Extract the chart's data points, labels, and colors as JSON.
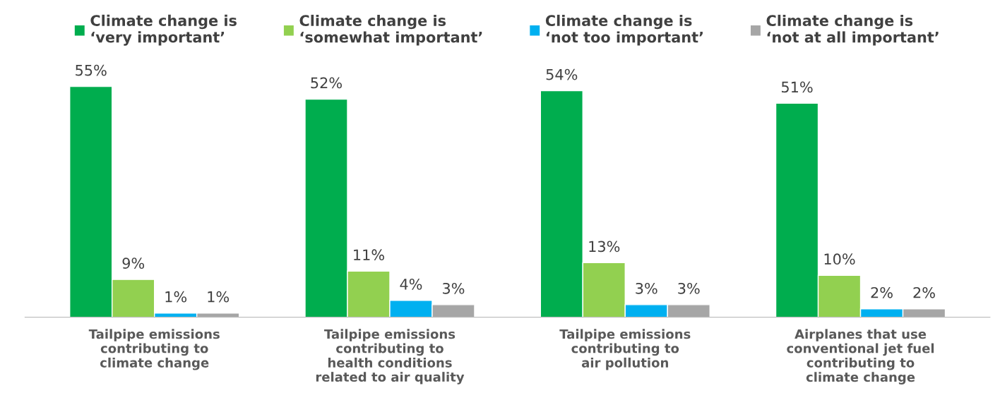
{
  "chart_data": {
    "type": "bar",
    "categories": [
      "Tailpipe emissions\ncontributing to\nclimate change",
      "Tailpipe emissions\ncontributing to\nhealth conditions\nrelated to air quality",
      "Tailpipe emissions\ncontributing to\nair pollution",
      "Airplanes that use\nconventional jet fuel\ncontributing to\nclimate change"
    ],
    "series": [
      {
        "name": "Climate change is\n‘very important’",
        "color": "#00ad4e",
        "values": [
          55,
          52,
          54,
          51
        ],
        "value_labels": [
          "55%",
          "52%",
          "54%",
          "51%"
        ]
      },
      {
        "name": "Climate change is\n‘somewhat important’",
        "color": "#92d050",
        "values": [
          9,
          11,
          13,
          10
        ],
        "value_labels": [
          "9%",
          "11%",
          "13%",
          "10%"
        ]
      },
      {
        "name": "Climate change is\n‘not too important’",
        "color": "#00b0f0",
        "values": [
          1,
          4,
          3,
          2
        ],
        "value_labels": [
          "1%",
          "4%",
          "3%",
          "2%"
        ]
      },
      {
        "name": "Climate change is\n‘not at all important’",
        "color": "#a6a6a6",
        "values": [
          1,
          3,
          3,
          2
        ],
        "value_labels": [
          "1%",
          "3%",
          "3%",
          "2%"
        ]
      }
    ],
    "legend": "top",
    "grid": false
  }
}
